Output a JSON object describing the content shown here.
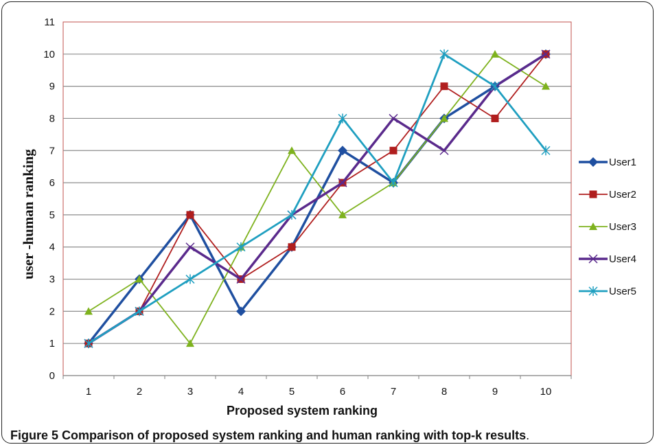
{
  "caption": {
    "label": "Figure 5",
    "text": "Comparison of proposed system ranking and human ranking with top-k results",
    "period": "."
  },
  "chart_data": {
    "type": "line",
    "title": "",
    "xlabel": "Proposed system ranking",
    "ylabel": "user -human ranking",
    "x": [
      1,
      2,
      3,
      4,
      5,
      6,
      7,
      8,
      9,
      10
    ],
    "ylim": [
      0,
      11
    ],
    "yticks": [
      0,
      1,
      2,
      3,
      4,
      5,
      6,
      7,
      8,
      9,
      10,
      11
    ],
    "grid": "horizontal",
    "legend": "right",
    "series": [
      {
        "name": "User1",
        "color": "#1f4fa0",
        "marker": "diamond",
        "values": [
          1,
          3,
          5,
          2,
          4,
          7,
          6,
          8,
          9,
          10
        ]
      },
      {
        "name": "User2",
        "color": "#b01e1e",
        "marker": "square",
        "values": [
          1,
          2,
          5,
          3,
          4,
          6,
          7,
          9,
          8,
          10
        ]
      },
      {
        "name": "User3",
        "color": "#7eb21e",
        "marker": "triangle",
        "values": [
          2,
          3,
          1,
          4,
          7,
          5,
          6,
          8,
          10,
          9
        ]
      },
      {
        "name": "User4",
        "color": "#5a2a8c",
        "marker": "x",
        "values": [
          1,
          2,
          4,
          3,
          5,
          6,
          8,
          7,
          9,
          10
        ]
      },
      {
        "name": "User5",
        "color": "#1f9fc0",
        "marker": "star",
        "values": [
          1,
          2,
          3,
          4,
          5,
          8,
          6,
          10,
          9,
          7
        ]
      }
    ]
  }
}
